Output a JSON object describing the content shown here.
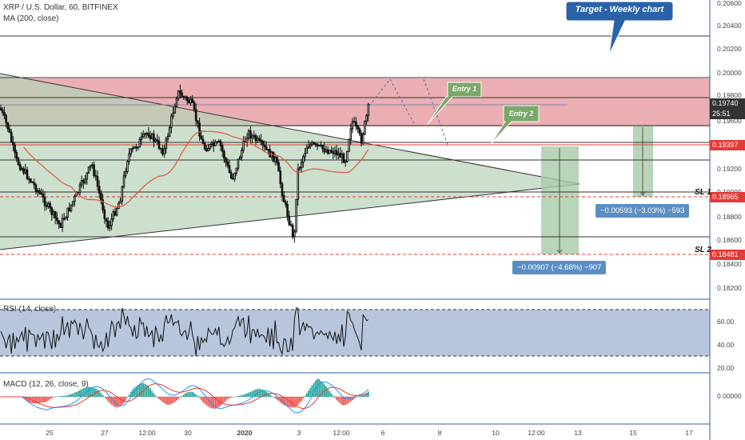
{
  "header": {
    "symbol_line": "XRP / U.S. Dollar, 60, BITFINEX",
    "ma_line": "MA (200, close)"
  },
  "price_axis": {
    "labels": [
      "0.20600",
      "0.20400",
      "0.20200",
      "0.20000",
      "0.19800",
      "0.19600",
      "0.19200",
      "0.19000",
      "0.18800",
      "0.18600",
      "0.18400",
      "0.18200"
    ]
  },
  "price_tags": {
    "current": "0.19740",
    "countdown": "25:51",
    "entry2_level": "0.19397",
    "sl1_level": "0.18965",
    "sl2_level": "0.18481"
  },
  "annotations": {
    "target": "Target - Weekly chart",
    "entry1": "Entry 1",
    "entry2": "Entry 2",
    "sl1": "SL 1",
    "sl2": "SL 2",
    "measure1": "−0.00593 (−3.03%) −593",
    "measure2": "−0.00907 (−4.68%) −907"
  },
  "rsi": {
    "title": "RSI (14, close)",
    "axis_labels": [
      "60.00",
      "40.00",
      "20.00"
    ]
  },
  "macd": {
    "title": "MACD (12, 26, close, 9)",
    "axis_label": "0.00000"
  },
  "time_axis": {
    "labels": [
      "25",
      "27",
      "12:00",
      "30",
      "2020",
      "3",
      "12:00",
      "6",
      "8",
      "10",
      "12:00",
      "13",
      "15",
      "17"
    ]
  },
  "colors": {
    "red_zone": "#e8a0a4",
    "green_zone": "#b7d3b8",
    "rsi_band": "#9fb3d1",
    "ma_line": "#e0553f",
    "red_tag": "#e53935",
    "label_blue": "#2962a8",
    "callout_green": "#7aa86a"
  }
}
